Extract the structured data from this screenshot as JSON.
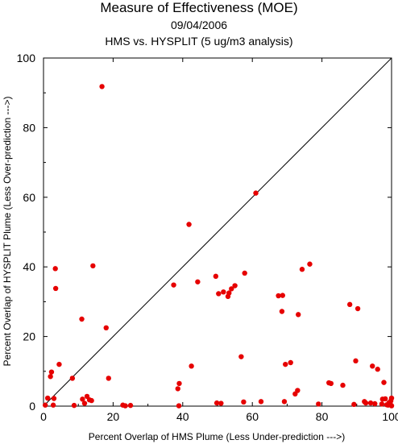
{
  "chart_data": {
    "type": "scatter",
    "title": "Measure of Effectiveness (MOE)",
    "date": "09/04/2006",
    "subtitle": "HMS vs. HYSPLIT  (5 ug/m3 analysis)",
    "xlabel": "Percent Overlap of HMS Plume (Less Under-prediction --->)",
    "ylabel": "Percent Overlap of HYSPLIT Plume (Less Over-prediction --->)",
    "xlim": [
      0,
      100
    ],
    "ylim": [
      0,
      100
    ],
    "xticks": [
      "0",
      "20",
      "40",
      "60",
      "80",
      "100"
    ],
    "yticks": [
      "0",
      "20",
      "40",
      "60",
      "80",
      "100"
    ],
    "reference_line": "y = x",
    "point_color": "#e60000",
    "points": [
      [
        0.5,
        0.3
      ],
      [
        1.2,
        2.3
      ],
      [
        2.0,
        8.5
      ],
      [
        2.3,
        9.8
      ],
      [
        3.0,
        2.2
      ],
      [
        2.8,
        0.3
      ],
      [
        3.4,
        39.5
      ],
      [
        3.5,
        33.8
      ],
      [
        4.5,
        12.0
      ],
      [
        8.3,
        8.0
      ],
      [
        8.8,
        0.2
      ],
      [
        11.0,
        25.0
      ],
      [
        11.2,
        2.0
      ],
      [
        11.8,
        0.8
      ],
      [
        12.5,
        2.8
      ],
      [
        13.2,
        1.8
      ],
      [
        13.8,
        1.6
      ],
      [
        14.2,
        40.3
      ],
      [
        16.8,
        91.8
      ],
      [
        18.0,
        22.5
      ],
      [
        18.7,
        8.0
      ],
      [
        22.8,
        0.3
      ],
      [
        23.5,
        0.1
      ],
      [
        25.0,
        0.2
      ],
      [
        37.4,
        34.8
      ],
      [
        38.6,
        5.0
      ],
      [
        38.9,
        0.1
      ],
      [
        39.0,
        6.5
      ],
      [
        41.8,
        52.2
      ],
      [
        42.5,
        11.5
      ],
      [
        44.3,
        35.7
      ],
      [
        49.5,
        37.3
      ],
      [
        49.8,
        0.9
      ],
      [
        50.3,
        32.3
      ],
      [
        51.0,
        0.8
      ],
      [
        51.7,
        32.8
      ],
      [
        53.0,
        31.5
      ],
      [
        53.3,
        32.5
      ],
      [
        54.0,
        33.7
      ],
      [
        55.0,
        34.6
      ],
      [
        56.8,
        14.2
      ],
      [
        57.5,
        1.2
      ],
      [
        57.8,
        38.2
      ],
      [
        61.0,
        61.2
      ],
      [
        62.5,
        1.3
      ],
      [
        67.5,
        31.7
      ],
      [
        68.5,
        27.2
      ],
      [
        68.7,
        31.8
      ],
      [
        69.2,
        1.3
      ],
      [
        69.5,
        12.0
      ],
      [
        71.0,
        12.5
      ],
      [
        72.3,
        3.5
      ],
      [
        73.0,
        4.5
      ],
      [
        73.2,
        26.3
      ],
      [
        74.3,
        39.3
      ],
      [
        76.5,
        40.8
      ],
      [
        79.0,
        0.6
      ],
      [
        82.0,
        6.7
      ],
      [
        82.6,
        6.5
      ],
      [
        86.0,
        6.0
      ],
      [
        88.0,
        29.2
      ],
      [
        89.2,
        0.5
      ],
      [
        89.7,
        13.0
      ],
      [
        90.3,
        28.0
      ],
      [
        92.2,
        1.3
      ],
      [
        92.6,
        0.9
      ],
      [
        94.0,
        0.9
      ],
      [
        94.5,
        11.5
      ],
      [
        95.2,
        0.7
      ],
      [
        96.0,
        10.6
      ],
      [
        97.2,
        0.6
      ],
      [
        97.4,
        2.0
      ],
      [
        97.8,
        6.8
      ],
      [
        98.2,
        2.1
      ],
      [
        98.6,
        0.4
      ],
      [
        99.0,
        0.3
      ],
      [
        99.3,
        1.0
      ],
      [
        99.6,
        0.8
      ],
      [
        99.8,
        1.5
      ],
      [
        100.0,
        2.3
      ],
      [
        100.0,
        0.1
      ]
    ]
  }
}
